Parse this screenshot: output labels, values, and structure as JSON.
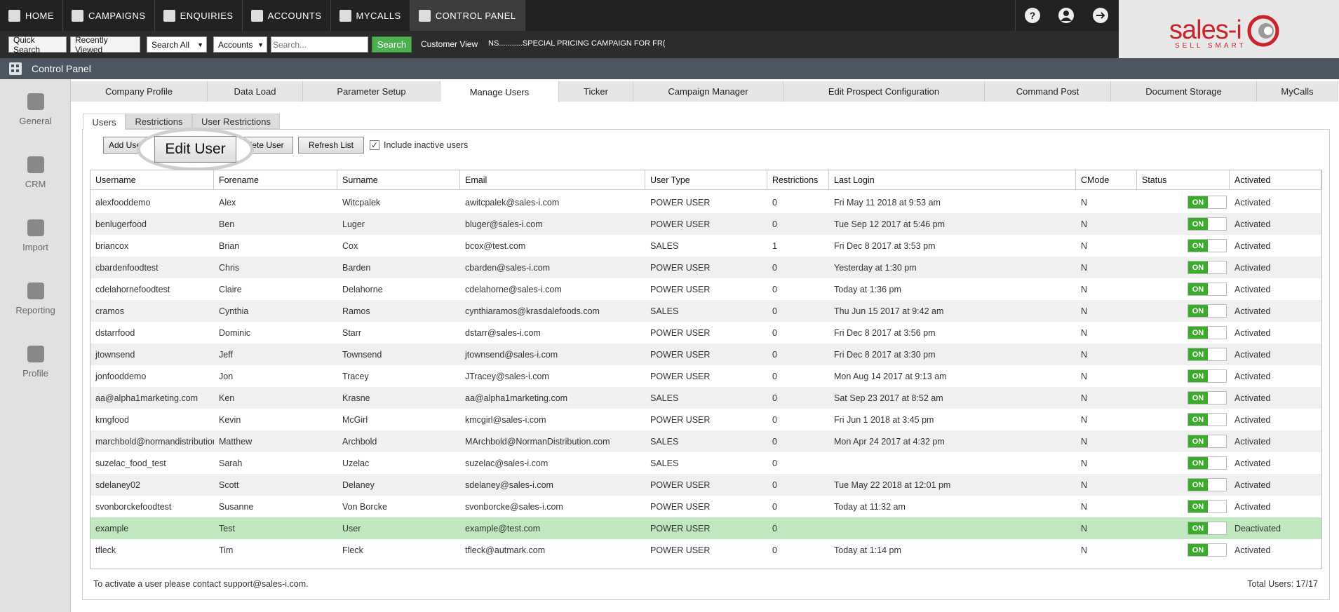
{
  "nav": [
    "HOME",
    "CAMPAIGNS",
    "ENQUIRIES",
    "ACCOUNTS",
    "MYCALLS",
    "CONTROL PANEL"
  ],
  "search_bar": {
    "quick_search": "Quick Search",
    "recently_viewed": "Recently Viewed",
    "search_all": "Search All",
    "accounts": "Accounts",
    "placeholder": "Search...",
    "search": "Search",
    "customer_view": "Customer View",
    "ticker": "NS...........SPECIAL PRICING CAMPAIGN FOR FR("
  },
  "logo": {
    "name": "sales-i",
    "tagline": "SELL SMART"
  },
  "header": {
    "title": "Control Panel"
  },
  "sidebar": [
    "General",
    "CRM",
    "Import",
    "Reporting",
    "Profile"
  ],
  "tabs": [
    "Company Profile",
    "Data Load",
    "Parameter Setup",
    "Manage Users",
    "Ticker",
    "Campaign Manager",
    "Edit Prospect Configuration",
    "Command Post",
    "Document Storage",
    "MyCalls"
  ],
  "subtabs": [
    "Users",
    "Restrictions",
    "User Restrictions"
  ],
  "buttons": {
    "add": "Add User",
    "delete": "Delete User",
    "refresh": "Refresh List",
    "include_inactive": "Include inactive users"
  },
  "callout": "Edit User",
  "table": {
    "headers": [
      "Username",
      "Forename",
      "Surname",
      "Email",
      "User Type",
      "Restrictions",
      "Last Login",
      "CMode",
      "Status",
      "Activated"
    ],
    "rows": [
      [
        "alexfooddemo",
        "Alex",
        "Witcpalek",
        "awitcpalek@sales-i.com",
        "POWER USER",
        0,
        "Fri May 11 2018 at 9:53 am",
        "N",
        "ON",
        "Activated"
      ],
      [
        "benlugerfood",
        "Ben",
        "Luger",
        "bluger@sales-i.com",
        "POWER USER",
        0,
        "Tue Sep 12 2017 at 5:46 pm",
        "N",
        "ON",
        "Activated"
      ],
      [
        "briancox",
        "Brian",
        "Cox",
        "bcox@test.com",
        "SALES",
        1,
        "Fri Dec 8 2017 at 3:53 pm",
        "N",
        "ON",
        "Activated"
      ],
      [
        "cbardenfoodtest",
        "Chris",
        "Barden",
        "cbarden@sales-i.com",
        "POWER USER",
        0,
        "Yesterday at 1:30 pm",
        "N",
        "ON",
        "Activated"
      ],
      [
        "cdelahornefoodtest",
        "Claire",
        "Delahorne",
        "cdelahorne@sales-i.com",
        "POWER USER",
        0,
        "Today at 1:36 pm",
        "N",
        "ON",
        "Activated"
      ],
      [
        "cramos",
        "Cynthia",
        "Ramos",
        "cynthiaramos@krasdalefoods.com",
        "SALES",
        0,
        "Thu Jun 15 2017 at 9:42 am",
        "N",
        "ON",
        "Activated"
      ],
      [
        "dstarrfood",
        "Dominic",
        "Starr",
        "dstarr@sales-i.com",
        "POWER USER",
        0,
        "Fri Dec 8 2017 at 3:56 pm",
        "N",
        "ON",
        "Activated"
      ],
      [
        "jtownsend",
        "Jeff",
        "Townsend",
        "jtownsend@sales-i.com",
        "POWER USER",
        0,
        "Fri Dec 8 2017 at 3:30 pm",
        "N",
        "ON",
        "Activated"
      ],
      [
        "jonfooddemo",
        "Jon",
        "Tracey",
        "JTracey@sales-i.com",
        "POWER USER",
        0,
        "Mon Aug 14 2017 at 9:13 am",
        "N",
        "ON",
        "Activated"
      ],
      [
        "aa@alpha1marketing.com",
        "Ken",
        "Krasne",
        "aa@alpha1marketing.com",
        "SALES",
        0,
        "Sat Sep 23 2017 at 8:52 am",
        "N",
        "ON",
        "Activated"
      ],
      [
        "kmgfood",
        "Kevin",
        "McGirl",
        "kmcgirl@sales-i.com",
        "POWER USER",
        0,
        "Fri Jun 1 2018 at 3:45 pm",
        "N",
        "ON",
        "Activated"
      ],
      [
        "marchbold@normandistribution",
        "Matthew",
        "Archbold",
        "MArchbold@NormanDistribution.com",
        "SALES",
        0,
        "Mon Apr 24 2017 at 4:32 pm",
        "N",
        "ON",
        "Activated"
      ],
      [
        "suzelac_food_test",
        "Sarah",
        "Uzelac",
        "suzelac@sales-i.com",
        "SALES",
        0,
        null,
        "N",
        "ON",
        "Activated"
      ],
      [
        "sdelaney02",
        "Scott",
        "Delaney",
        "sdelaney@sales-i.com",
        "POWER USER",
        0,
        "Tue May 22 2018 at 12:01 pm",
        "N",
        "ON",
        "Activated"
      ],
      [
        "svonborckefoodtest",
        "Susanne",
        "Von Borcke",
        "svonborcke@sales-i.com",
        "POWER USER",
        0,
        "Today at 11:32 am",
        "N",
        "ON",
        "Activated"
      ],
      [
        "example",
        "Test",
        "User",
        "example@test.com",
        "POWER USER",
        0,
        null,
        "N",
        "ON",
        "Deactivated"
      ],
      [
        "tfleck",
        "Tim",
        "Fleck",
        "tfleck@autmark.com",
        "POWER USER",
        0,
        "Today at 1:14 pm",
        "N",
        "ON",
        "Activated"
      ]
    ]
  },
  "footer": {
    "note": "To activate a user please contact support@sales-i.com.",
    "total": "Total Users: 17/17"
  }
}
